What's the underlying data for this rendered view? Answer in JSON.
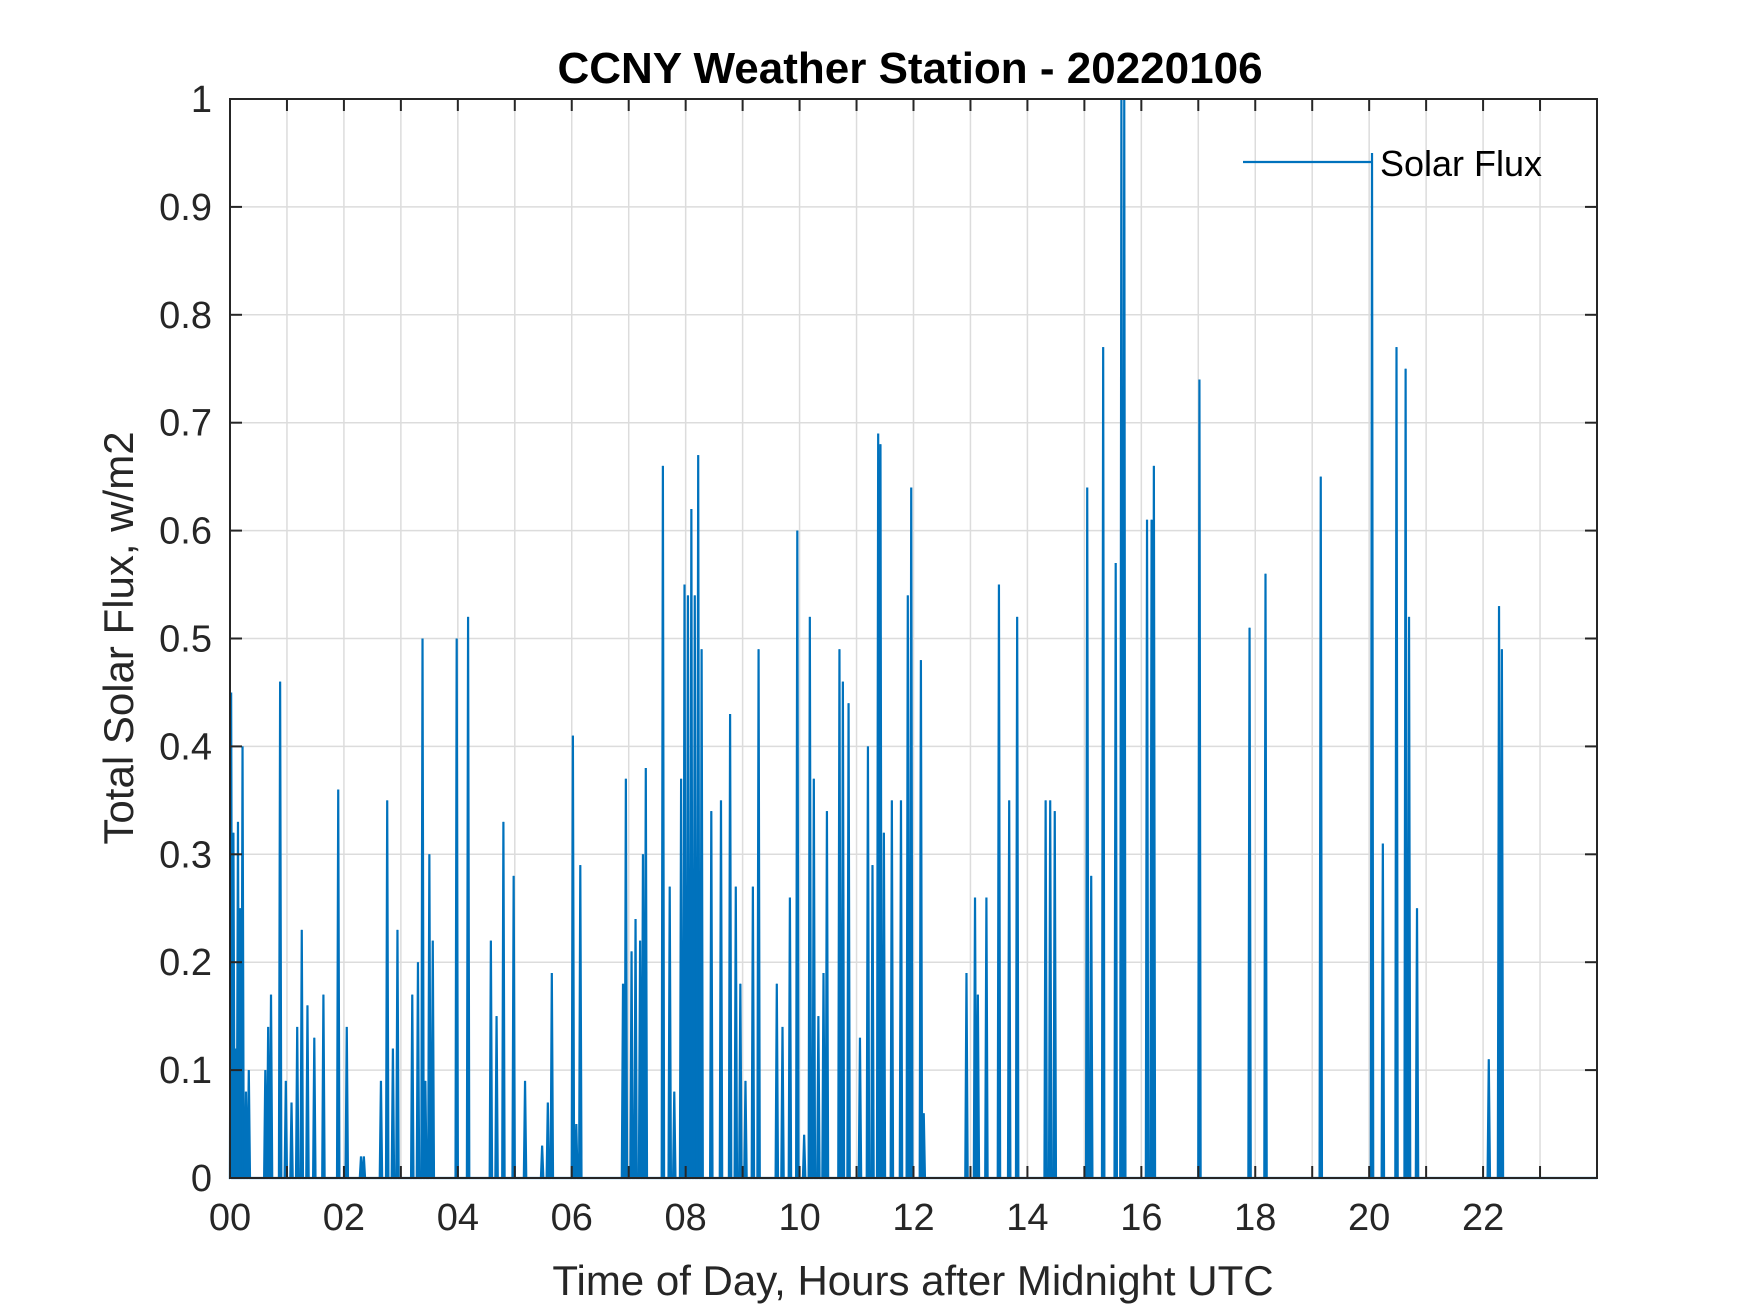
{
  "chart_data": {
    "type": "line",
    "title": "CCNY Weather Station - 20220106",
    "xlabel": "Time of Day, Hours after Midnight UTC",
    "ylabel": "Total Solar Flux, w/m2",
    "xlim": [
      0,
      24
    ],
    "ylim": [
      0,
      1
    ],
    "xticks": [
      0,
      2,
      4,
      6,
      8,
      10,
      12,
      14,
      16,
      18,
      20,
      22
    ],
    "xtick_labels": [
      "00",
      "02",
      "04",
      "06",
      "08",
      "10",
      "12",
      "14",
      "16",
      "18",
      "20",
      "22"
    ],
    "yticks": [
      0,
      0.1,
      0.2,
      0.3,
      0.4,
      0.5,
      0.6,
      0.7,
      0.8,
      0.9,
      1
    ],
    "ytick_labels": [
      "0",
      "0.1",
      "0.2",
      "0.3",
      "0.4",
      "0.5",
      "0.6",
      "0.7",
      "0.8",
      "0.9",
      "1"
    ],
    "grid": true,
    "legend": {
      "position": "top-right",
      "entries": [
        "Solar Flux"
      ]
    },
    "series": [
      {
        "name": "Solar Flux",
        "color": "#0072BD",
        "spikes": [
          [
            0.02,
            0.45
          ],
          [
            0.06,
            0.32
          ],
          [
            0.1,
            0.12
          ],
          [
            0.14,
            0.33
          ],
          [
            0.18,
            0.25
          ],
          [
            0.22,
            0.4
          ],
          [
            0.28,
            0.08
          ],
          [
            0.33,
            0.1
          ],
          [
            0.62,
            0.1
          ],
          [
            0.67,
            0.14
          ],
          [
            0.72,
            0.17
          ],
          [
            0.88,
            0.46
          ],
          [
            0.98,
            0.09
          ],
          [
            1.08,
            0.07
          ],
          [
            1.18,
            0.14
          ],
          [
            1.26,
            0.23
          ],
          [
            1.36,
            0.16
          ],
          [
            1.48,
            0.13
          ],
          [
            1.64,
            0.17
          ],
          [
            1.9,
            0.36
          ],
          [
            2.05,
            0.14
          ],
          [
            2.3,
            0.02
          ],
          [
            2.35,
            0.02
          ],
          [
            2.65,
            0.09
          ],
          [
            2.76,
            0.35
          ],
          [
            2.86,
            0.12
          ],
          [
            2.94,
            0.23
          ],
          [
            3.2,
            0.17
          ],
          [
            3.3,
            0.2
          ],
          [
            3.38,
            0.5
          ],
          [
            3.43,
            0.09
          ],
          [
            3.5,
            0.3
          ],
          [
            3.56,
            0.22
          ],
          [
            3.98,
            0.5
          ],
          [
            4.18,
            0.52
          ],
          [
            4.58,
            0.22
          ],
          [
            4.68,
            0.15
          ],
          [
            4.8,
            0.33
          ],
          [
            4.98,
            0.28
          ],
          [
            5.18,
            0.09
          ],
          [
            5.48,
            0.03
          ],
          [
            5.58,
            0.07
          ],
          [
            5.65,
            0.19
          ],
          [
            6.02,
            0.41
          ],
          [
            6.08,
            0.05
          ],
          [
            6.15,
            0.29
          ],
          [
            6.9,
            0.18
          ],
          [
            6.95,
            0.37
          ],
          [
            7.05,
            0.21
          ],
          [
            7.12,
            0.24
          ],
          [
            7.2,
            0.22
          ],
          [
            7.25,
            0.3
          ],
          [
            7.3,
            0.38
          ],
          [
            7.6,
            0.66
          ],
          [
            7.72,
            0.27
          ],
          [
            7.8,
            0.08
          ],
          [
            7.92,
            0.37
          ],
          [
            7.98,
            0.55
          ],
          [
            8.04,
            0.54
          ],
          [
            8.1,
            0.62
          ],
          [
            8.16,
            0.54
          ],
          [
            8.22,
            0.67
          ],
          [
            8.28,
            0.49
          ],
          [
            8.45,
            0.34
          ],
          [
            8.62,
            0.35
          ],
          [
            8.78,
            0.43
          ],
          [
            8.88,
            0.27
          ],
          [
            8.96,
            0.18
          ],
          [
            9.05,
            0.09
          ],
          [
            9.18,
            0.27
          ],
          [
            9.28,
            0.49
          ],
          [
            9.6,
            0.18
          ],
          [
            9.7,
            0.14
          ],
          [
            9.83,
            0.26
          ],
          [
            9.96,
            0.6
          ],
          [
            10.08,
            0.04
          ],
          [
            10.18,
            0.52
          ],
          [
            10.25,
            0.37
          ],
          [
            10.33,
            0.15
          ],
          [
            10.42,
            0.19
          ],
          [
            10.48,
            0.34
          ],
          [
            10.7,
            0.49
          ],
          [
            10.76,
            0.46
          ],
          [
            10.86,
            0.44
          ],
          [
            11.06,
            0.13
          ],
          [
            11.2,
            0.4
          ],
          [
            11.28,
            0.29
          ],
          [
            11.38,
            0.69
          ],
          [
            11.42,
            0.68
          ],
          [
            11.48,
            0.32
          ],
          [
            11.62,
            0.35
          ],
          [
            11.78,
            0.35
          ],
          [
            11.9,
            0.54
          ],
          [
            11.96,
            0.64
          ],
          [
            12.13,
            0.48
          ],
          [
            12.18,
            0.06
          ],
          [
            12.93,
            0.19
          ],
          [
            13.08,
            0.26
          ],
          [
            13.13,
            0.17
          ],
          [
            13.28,
            0.26
          ],
          [
            13.5,
            0.55
          ],
          [
            13.68,
            0.35
          ],
          [
            13.82,
            0.52
          ],
          [
            14.32,
            0.35
          ],
          [
            14.4,
            0.35
          ],
          [
            14.48,
            0.34
          ],
          [
            15.05,
            0.64
          ],
          [
            15.12,
            0.28
          ],
          [
            15.33,
            0.77
          ],
          [
            15.55,
            0.57
          ],
          [
            15.65,
            1.0
          ],
          [
            15.7,
            1.0
          ],
          [
            16.1,
            0.61
          ],
          [
            16.18,
            0.61
          ],
          [
            16.22,
            0.66
          ],
          [
            17.02,
            0.74
          ],
          [
            17.9,
            0.51
          ],
          [
            18.18,
            0.56
          ],
          [
            19.15,
            0.65
          ],
          [
            20.05,
            0.95
          ],
          [
            20.24,
            0.31
          ],
          [
            20.48,
            0.77
          ],
          [
            20.64,
            0.75
          ],
          [
            20.7,
            0.52
          ],
          [
            20.84,
            0.25
          ],
          [
            22.1,
            0.11
          ],
          [
            22.28,
            0.53
          ],
          [
            22.33,
            0.49
          ]
        ]
      }
    ]
  }
}
